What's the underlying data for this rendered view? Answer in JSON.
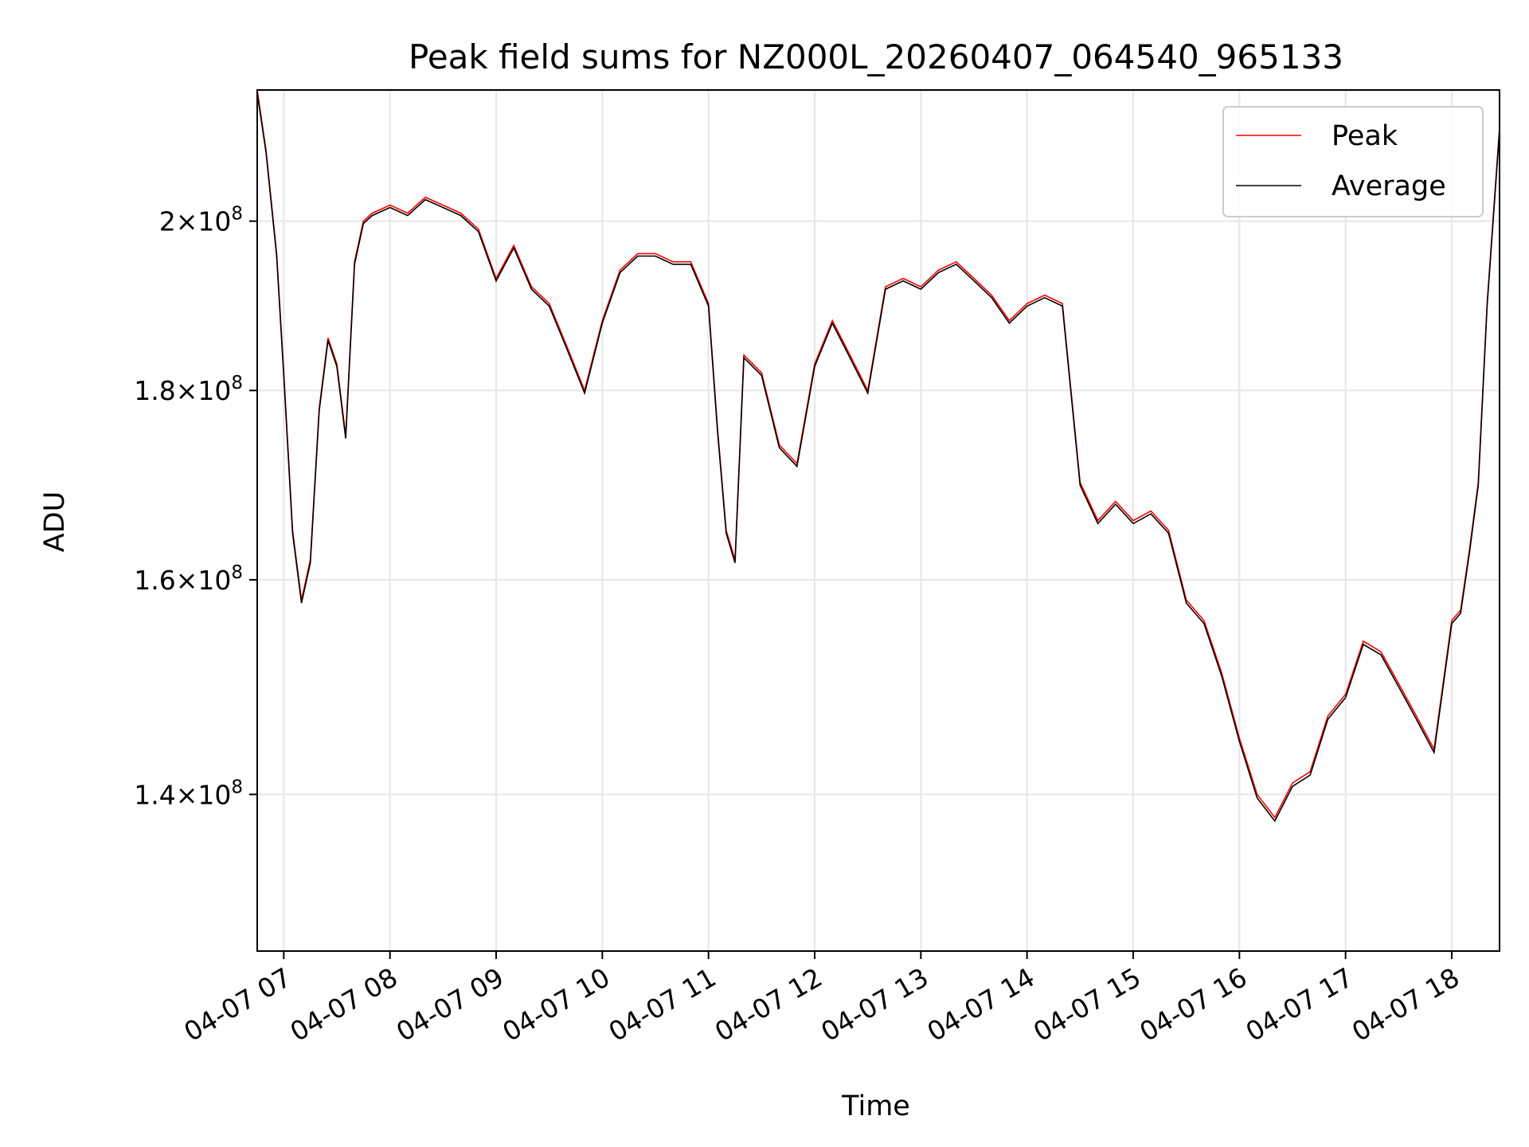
{
  "chart_data": {
    "type": "line",
    "title": "Peak field sums for NZ000L_20260407_064540_965133",
    "xlabel": "Time",
    "ylabel": "ADU",
    "yscale": "log",
    "xlim": [
      "2026-04-07 06:45",
      "2026-04-07 18:27"
    ],
    "ylim": [
      127000000,
      217000000
    ],
    "grid": true,
    "legend_position": "top-right",
    "x_ticks": [
      {
        "value": "2026-04-07 07:00",
        "label": "04-07 07"
      },
      {
        "value": "2026-04-07 08:00",
        "label": "04-07 08"
      },
      {
        "value": "2026-04-07 09:00",
        "label": "04-07 09"
      },
      {
        "value": "2026-04-07 10:00",
        "label": "04-07 10"
      },
      {
        "value": "2026-04-07 11:00",
        "label": "04-07 11"
      },
      {
        "value": "2026-04-07 12:00",
        "label": "04-07 12"
      },
      {
        "value": "2026-04-07 13:00",
        "label": "04-07 13"
      },
      {
        "value": "2026-04-07 14:00",
        "label": "04-07 14"
      },
      {
        "value": "2026-04-07 15:00",
        "label": "04-07 15"
      },
      {
        "value": "2026-04-07 16:00",
        "label": "04-07 16"
      },
      {
        "value": "2026-04-07 17:00",
        "label": "04-07 17"
      },
      {
        "value": "2026-04-07 18:00",
        "label": "04-07 18"
      }
    ],
    "y_ticks": [
      {
        "value": 140000000,
        "mantissa": "1.4",
        "base": "10",
        "exp": "8"
      },
      {
        "value": 160000000,
        "mantissa": "1.6",
        "base": "10",
        "exp": "8"
      },
      {
        "value": 180000000,
        "mantissa": "1.8",
        "base": "10",
        "exp": "8"
      },
      {
        "value": 200000000,
        "mantissa": "2",
        "base": "10",
        "exp": "8"
      }
    ],
    "series": [
      {
        "name": "Peak",
        "color": "#ff0000",
        "x": [
          "2026-04-07 06:45",
          "2026-04-07 06:50",
          "2026-04-07 06:56",
          "2026-04-07 07:00",
          "2026-04-07 07:05",
          "2026-04-07 07:10",
          "2026-04-07 07:15",
          "2026-04-07 07:20",
          "2026-04-07 07:25",
          "2026-04-07 07:30",
          "2026-04-07 07:35",
          "2026-04-07 07:40",
          "2026-04-07 07:45",
          "2026-04-07 07:50",
          "2026-04-07 08:00",
          "2026-04-07 08:10",
          "2026-04-07 08:20",
          "2026-04-07 08:30",
          "2026-04-07 08:40",
          "2026-04-07 08:50",
          "2026-04-07 09:00",
          "2026-04-07 09:10",
          "2026-04-07 09:20",
          "2026-04-07 09:30",
          "2026-04-07 09:40",
          "2026-04-07 09:50",
          "2026-04-07 10:00",
          "2026-04-07 10:10",
          "2026-04-07 10:20",
          "2026-04-07 10:30",
          "2026-04-07 10:40",
          "2026-04-07 10:50",
          "2026-04-07 11:00",
          "2026-04-07 11:05",
          "2026-04-07 11:10",
          "2026-04-07 11:15",
          "2026-04-07 11:20",
          "2026-04-07 11:30",
          "2026-04-07 11:40",
          "2026-04-07 11:50",
          "2026-04-07 12:00",
          "2026-04-07 12:10",
          "2026-04-07 12:20",
          "2026-04-07 12:30",
          "2026-04-07 12:40",
          "2026-04-07 12:50",
          "2026-04-07 13:00",
          "2026-04-07 13:10",
          "2026-04-07 13:20",
          "2026-04-07 13:30",
          "2026-04-07 13:40",
          "2026-04-07 13:50",
          "2026-04-07 14:00",
          "2026-04-07 14:10",
          "2026-04-07 14:20",
          "2026-04-07 14:30",
          "2026-04-07 14:40",
          "2026-04-07 14:50",
          "2026-04-07 15:00",
          "2026-04-07 15:10",
          "2026-04-07 15:20",
          "2026-04-07 15:30",
          "2026-04-07 15:40",
          "2026-04-07 15:50",
          "2026-04-07 16:00",
          "2026-04-07 16:10",
          "2026-04-07 16:20",
          "2026-04-07 16:30",
          "2026-04-07 16:40",
          "2026-04-07 16:50",
          "2026-04-07 17:00",
          "2026-04-07 17:10",
          "2026-04-07 17:20",
          "2026-04-07 17:30",
          "2026-04-07 17:40",
          "2026-04-07 17:50",
          "2026-04-07 18:00",
          "2026-04-07 18:05",
          "2026-04-07 18:10",
          "2026-04-07 18:15",
          "2026-04-07 18:20",
          "2026-04-07 18:27"
        ],
        "y": [
          217000000,
          209000000,
          196000000,
          182000000,
          165000000,
          158000000,
          162000000,
          178000000,
          186000000,
          183000000,
          175000000,
          195000000,
          200000000,
          201000000,
          202000000,
          201000000,
          203000000,
          202000000,
          201000000,
          199000000,
          193000000,
          197000000,
          192000000,
          190000000,
          185000000,
          180000000,
          188000000,
          194000000,
          196000000,
          196000000,
          195000000,
          195000000,
          190000000,
          176000000,
          165000000,
          162000000,
          184000000,
          182000000,
          174000000,
          172000000,
          183000000,
          188000000,
          184000000,
          180000000,
          192000000,
          193000000,
          192000000,
          194000000,
          195000000,
          193000000,
          191000000,
          188000000,
          190000000,
          191000000,
          190000000,
          170000000,
          166000000,
          168000000,
          166000000,
          167000000,
          165000000,
          158000000,
          156000000,
          151000000,
          145000000,
          140000000,
          138000000,
          141000000,
          142000000,
          147000000,
          149000000,
          154000000,
          153000000,
          150000000,
          147000000,
          144000000,
          156000000,
          157000000,
          163000000,
          170000000,
          190000000,
          212000000
        ]
      },
      {
        "name": "Average",
        "color": "#000000",
        "x": [
          "2026-04-07 06:45",
          "2026-04-07 06:50",
          "2026-04-07 06:56",
          "2026-04-07 07:00",
          "2026-04-07 07:05",
          "2026-04-07 07:10",
          "2026-04-07 07:15",
          "2026-04-07 07:20",
          "2026-04-07 07:25",
          "2026-04-07 07:30",
          "2026-04-07 07:35",
          "2026-04-07 07:40",
          "2026-04-07 07:45",
          "2026-04-07 07:50",
          "2026-04-07 08:00",
          "2026-04-07 08:10",
          "2026-04-07 08:20",
          "2026-04-07 08:30",
          "2026-04-07 08:40",
          "2026-04-07 08:50",
          "2026-04-07 09:00",
          "2026-04-07 09:10",
          "2026-04-07 09:20",
          "2026-04-07 09:30",
          "2026-04-07 09:40",
          "2026-04-07 09:50",
          "2026-04-07 10:00",
          "2026-04-07 10:10",
          "2026-04-07 10:20",
          "2026-04-07 10:30",
          "2026-04-07 10:40",
          "2026-04-07 10:50",
          "2026-04-07 11:00",
          "2026-04-07 11:05",
          "2026-04-07 11:10",
          "2026-04-07 11:15",
          "2026-04-07 11:20",
          "2026-04-07 11:30",
          "2026-04-07 11:40",
          "2026-04-07 11:50",
          "2026-04-07 12:00",
          "2026-04-07 12:10",
          "2026-04-07 12:20",
          "2026-04-07 12:30",
          "2026-04-07 12:40",
          "2026-04-07 12:50",
          "2026-04-07 13:00",
          "2026-04-07 13:10",
          "2026-04-07 13:20",
          "2026-04-07 13:30",
          "2026-04-07 13:40",
          "2026-04-07 13:50",
          "2026-04-07 14:00",
          "2026-04-07 14:10",
          "2026-04-07 14:20",
          "2026-04-07 14:30",
          "2026-04-07 14:40",
          "2026-04-07 14:50",
          "2026-04-07 15:00",
          "2026-04-07 15:10",
          "2026-04-07 15:20",
          "2026-04-07 15:30",
          "2026-04-07 15:40",
          "2026-04-07 15:50",
          "2026-04-07 16:00",
          "2026-04-07 16:10",
          "2026-04-07 16:20",
          "2026-04-07 16:30",
          "2026-04-07 16:40",
          "2026-04-07 16:50",
          "2026-04-07 17:00",
          "2026-04-07 17:10",
          "2026-04-07 17:20",
          "2026-04-07 17:30",
          "2026-04-07 17:40",
          "2026-04-07 17:50",
          "2026-04-07 18:00",
          "2026-04-07 18:05",
          "2026-04-07 18:10",
          "2026-04-07 18:15",
          "2026-04-07 18:20",
          "2026-04-07 18:27"
        ],
        "y": [
          216600000,
          208700000,
          195700000,
          181700000,
          164700000,
          157700000,
          161700000,
          177700000,
          185700000,
          182700000,
          174700000,
          194700000,
          199700000,
          200700000,
          201700000,
          200700000,
          202700000,
          201700000,
          200700000,
          198700000,
          192700000,
          196700000,
          191700000,
          189700000,
          184700000,
          179700000,
          187700000,
          193700000,
          195700000,
          195700000,
          194700000,
          194700000,
          189700000,
          175700000,
          164700000,
          161700000,
          183700000,
          181700000,
          173700000,
          171700000,
          182700000,
          187700000,
          183700000,
          179700000,
          191700000,
          192700000,
          191700000,
          193700000,
          194700000,
          192700000,
          190700000,
          187700000,
          189700000,
          190700000,
          189700000,
          169700000,
          165700000,
          167700000,
          165700000,
          166700000,
          164700000,
          157700000,
          155700000,
          150700000,
          144700000,
          139700000,
          137700000,
          140700000,
          141700000,
          146700000,
          148700000,
          153700000,
          152700000,
          149700000,
          146700000,
          143700000,
          155700000,
          156700000,
          162700000,
          169700000,
          189700000,
          211600000
        ]
      }
    ]
  }
}
